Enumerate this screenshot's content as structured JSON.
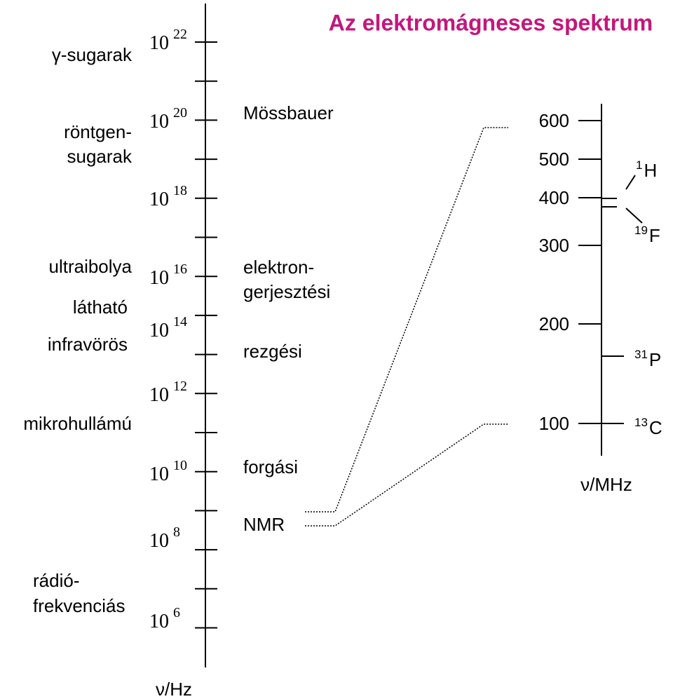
{
  "title": "Az elektromágneses spektrum",
  "frequency_axis": {
    "label": "ν/Hz",
    "tick_labels": [
      {
        "base": "10",
        "exponent": "22"
      },
      {
        "base": "10",
        "exponent": "20"
      },
      {
        "base": "10",
        "exponent": "18"
      },
      {
        "base": "10",
        "exponent": "16"
      },
      {
        "base": "10",
        "exponent": "14"
      },
      {
        "base": "10",
        "exponent": "12"
      },
      {
        "base": "10",
        "exponent": "10"
      },
      {
        "base": "10",
        "exponent": "8"
      },
      {
        "base": "10",
        "exponent": "6"
      }
    ]
  },
  "regions": [
    {
      "lines": [
        "γ-sugarak"
      ]
    },
    {
      "lines": [
        "röntgen-",
        "sugarak"
      ]
    },
    {
      "lines": [
        "ultraibolya"
      ]
    },
    {
      "lines": [
        "látható"
      ]
    },
    {
      "lines": [
        "infravörös"
      ]
    },
    {
      "lines": [
        "mikrohullámú"
      ]
    },
    {
      "lines": [
        "rádió-",
        "frekvenciás"
      ]
    }
  ],
  "transitions": [
    {
      "lines": [
        "Mössbauer"
      ]
    },
    {
      "lines": [
        "elektron-",
        "gerjesztési"
      ]
    },
    {
      "lines": [
        "rezgési"
      ]
    },
    {
      "lines": [
        "forgási"
      ]
    },
    {
      "lines": [
        "NMR"
      ]
    }
  ],
  "nmr_axis": {
    "label": "ν/MHz",
    "tick_labels": [
      "600",
      "500",
      "400",
      "300",
      "200",
      "100"
    ]
  },
  "nuclei": [
    {
      "mass": "1",
      "symbol": "H"
    },
    {
      "mass": "19",
      "symbol": "F"
    },
    {
      "mass": "31",
      "symbol": "P"
    },
    {
      "mass": "13",
      "symbol": "C"
    }
  ]
}
